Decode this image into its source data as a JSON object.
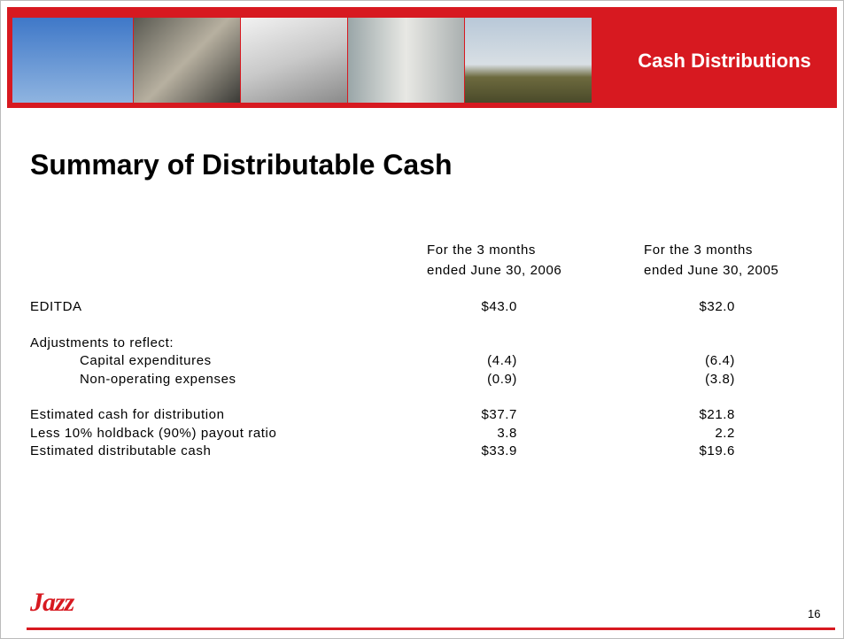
{
  "header": {
    "title": "Cash Distributions"
  },
  "heading": "Summary of Distributable Cash",
  "table": {
    "columns": [
      [
        "For the 3 months",
        "ended June 30, 2006"
      ],
      [
        "For the 3 months",
        "ended June 30, 2005"
      ]
    ],
    "rows": [
      {
        "label": "EDITDA",
        "values": [
          "$43.0",
          "$32.0"
        ]
      },
      {
        "label": "Adjustments to reflect:"
      },
      {
        "label": "Capital expenditures",
        "values": [
          "(4.4)",
          "(6.4)"
        ]
      },
      {
        "label": "Non-operating expenses",
        "values": [
          "(0.9)",
          "(3.8)"
        ]
      },
      {
        "label": "Estimated cash for distribution",
        "values": [
          "$37.7",
          "$21.8"
        ]
      },
      {
        "label": "Less 10% holdback (90%) payout ratio",
        "values": [
          "3.8",
          "2.2"
        ]
      },
      {
        "label": "Estimated distributable cash",
        "values": [
          "$33.9",
          "$19.6"
        ]
      }
    ]
  },
  "footer": {
    "logo": "Jazz",
    "page_number": "16"
  }
}
